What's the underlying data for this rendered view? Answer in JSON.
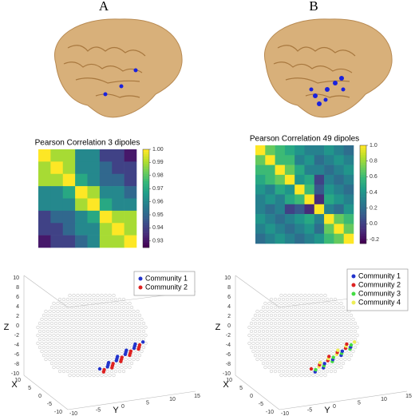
{
  "panels": [
    {
      "label": "A",
      "heatmap": {
        "title": "Pearson Correlation 3 dipoles",
        "clim": [
          0.925,
          1.0
        ],
        "colorbar_ticks": [
          {
            "value": 1.0,
            "label": "1.00"
          },
          0.99,
          0.98,
          0.97,
          0.96,
          0.95,
          0.94,
          0.93
        ],
        "matrix": [
          [
            1.0,
            0.99,
            0.99,
            0.96,
            0.96,
            0.94,
            0.94,
            0.93
          ],
          [
            0.99,
            1.0,
            0.99,
            0.96,
            0.96,
            0.95,
            0.94,
            0.94
          ],
          [
            0.99,
            0.99,
            1.0,
            0.97,
            0.96,
            0.95,
            0.95,
            0.94
          ],
          [
            0.96,
            0.96,
            0.97,
            1.0,
            0.99,
            0.96,
            0.96,
            0.95
          ],
          [
            0.96,
            0.96,
            0.96,
            0.99,
            1.0,
            0.97,
            0.96,
            0.96
          ],
          [
            0.94,
            0.95,
            0.95,
            0.96,
            0.97,
            1.0,
            0.99,
            0.99
          ],
          [
            0.94,
            0.94,
            0.95,
            0.96,
            0.96,
            0.99,
            1.0,
            0.99
          ],
          [
            0.93,
            0.94,
            0.94,
            0.95,
            0.96,
            0.99,
            0.99,
            1.0
          ]
        ]
      },
      "scatter": {
        "axis_labels": {
          "x": "X",
          "y": "Y",
          "z": "Z"
        },
        "communities": [
          {
            "name": "Community 1",
            "color": "#2233cc"
          },
          {
            "name": "Community 2",
            "color": "#dd2222"
          }
        ],
        "xticks": [
          10,
          5,
          0,
          -5,
          -10
        ],
        "yticks": [
          -10,
          -5,
          0,
          5,
          10,
          15
        ],
        "zticks": [
          10,
          8,
          6,
          4,
          2,
          0,
          -2,
          -4,
          -6,
          -8,
          -10
        ]
      }
    },
    {
      "label": "B",
      "heatmap": {
        "title": "Pearson Correlation 49 dipoles",
        "clim": [
          -0.25,
          1.0
        ],
        "colorbar_ticks": [
          {
            "value": 1.0,
            "label": "1.0"
          },
          0.8,
          0.6,
          0.4,
          0.2,
          {
            "value": 0,
            "label": "0.0"
          },
          -0.2
        ],
        "matrix": [
          [
            1.0,
            0.7,
            0.6,
            0.5,
            0.4,
            0.3,
            0.3,
            0.4,
            0.3,
            0.2
          ],
          [
            0.7,
            1.0,
            0.6,
            0.6,
            0.3,
            0.4,
            0.2,
            0.3,
            0.4,
            0.3
          ],
          [
            0.6,
            0.6,
            1.0,
            0.7,
            0.5,
            0.3,
            0.3,
            0.2,
            0.3,
            0.4
          ],
          [
            0.5,
            0.6,
            0.7,
            1.0,
            0.4,
            0.5,
            0.0,
            0.3,
            0.2,
            0.3
          ],
          [
            0.4,
            0.3,
            0.5,
            0.4,
            1.0,
            0.6,
            0.1,
            0.4,
            0.3,
            0.2
          ],
          [
            0.3,
            0.4,
            0.3,
            0.5,
            0.6,
            1.0,
            -0.1,
            0.5,
            0.4,
            0.3
          ],
          [
            0.3,
            0.2,
            0.3,
            0.0,
            0.1,
            -0.1,
            1.0,
            0.3,
            0.2,
            0.4
          ],
          [
            0.4,
            0.3,
            0.2,
            0.3,
            0.4,
            0.5,
            0.3,
            1.0,
            0.7,
            0.6
          ],
          [
            0.3,
            0.4,
            0.3,
            0.2,
            0.3,
            0.4,
            0.2,
            0.7,
            1.0,
            0.7
          ],
          [
            0.2,
            0.3,
            0.4,
            0.3,
            0.2,
            0.3,
            0.4,
            0.6,
            0.7,
            1.0
          ]
        ]
      },
      "scatter": {
        "axis_labels": {
          "x": "X",
          "y": "Y",
          "z": "Z"
        },
        "communities": [
          {
            "name": "Community 1",
            "color": "#2233cc"
          },
          {
            "name": "Community 2",
            "color": "#dd2222"
          },
          {
            "name": "Community 3",
            "color": "#44dd44"
          },
          {
            "name": "Community 4",
            "color": "#eeee55"
          }
        ],
        "xticks": [
          10,
          5,
          0,
          -5,
          -10
        ],
        "yticks": [
          -10,
          -5,
          0,
          5,
          10,
          15
        ],
        "zticks": [
          10,
          8,
          6,
          4,
          2,
          0,
          -2,
          -4,
          -6,
          -8,
          -10
        ]
      }
    }
  ]
}
